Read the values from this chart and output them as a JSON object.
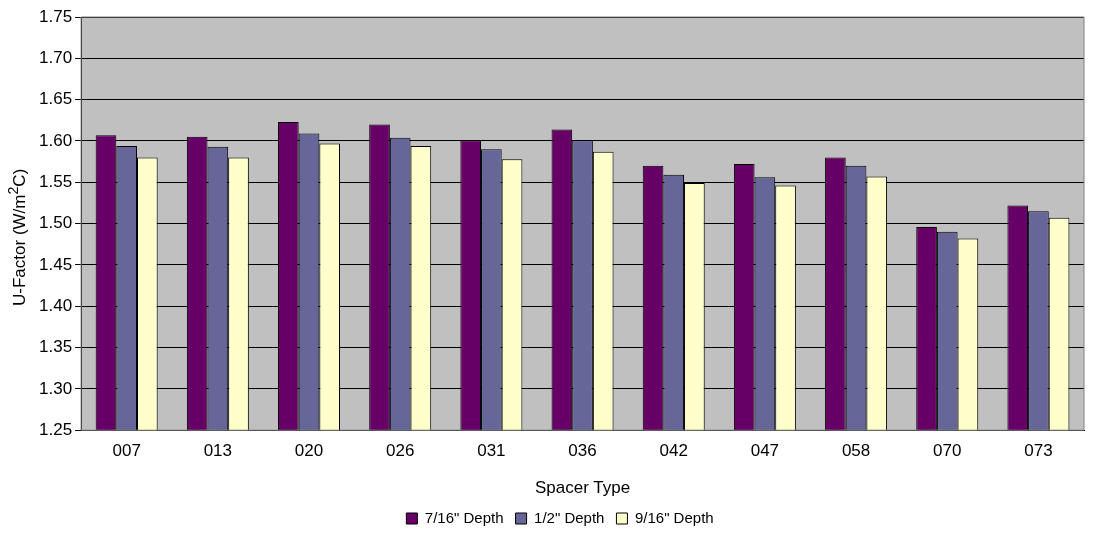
{
  "chart_data": {
    "type": "bar",
    "xlabel": "Spacer Type",
    "ylabel": "U-Factor (W/m$^{2}$C)",
    "categories": [
      "007",
      "013",
      "020",
      "026",
      "031",
      "036",
      "042",
      "047",
      "058",
      "070",
      "073"
    ],
    "series": [
      {
        "name": "7/16\" Depth",
        "color": "#660066",
        "values": [
          1.607,
          1.605,
          1.623,
          1.62,
          1.601,
          1.614,
          1.57,
          1.572,
          1.58,
          1.496,
          1.522
        ]
      },
      {
        "name": "1/2\" Depth",
        "color": "#666699",
        "values": [
          1.594,
          1.593,
          1.609,
          1.604,
          1.59,
          1.601,
          1.559,
          1.556,
          1.57,
          1.49,
          1.515
        ]
      },
      {
        "name": "9/16\" Depth",
        "color": "#ffffcc",
        "values": [
          1.58,
          1.58,
          1.597,
          1.594,
          1.578,
          1.587,
          1.549,
          1.546,
          1.557,
          1.482,
          1.507
        ]
      }
    ],
    "ylim": [
      1.25,
      1.75
    ],
    "yticks": [
      {
        "value": 1.25,
        "label": "1.25"
      },
      {
        "value": 1.3,
        "label": "1.30"
      },
      {
        "value": 1.35,
        "label": "1.35"
      },
      {
        "value": 1.4,
        "label": "1.40"
      },
      {
        "value": 1.45,
        "label": "1.45"
      },
      {
        "value": 1.5,
        "label": "1.50"
      },
      {
        "value": 1.55,
        "label": "1.55"
      },
      {
        "value": 1.6,
        "label": "1.60"
      },
      {
        "value": 1.65,
        "label": "1.65"
      },
      {
        "value": 1.7,
        "label": "1.70"
      },
      {
        "value": 1.75,
        "label": "1.75"
      }
    ],
    "grid": "y",
    "legend": "bottom"
  }
}
